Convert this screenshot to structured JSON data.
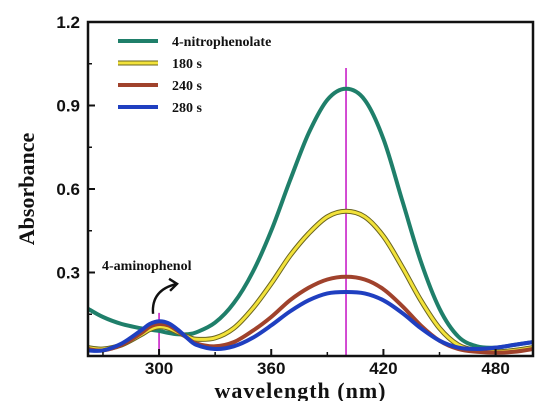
{
  "chart_data": {
    "type": "line",
    "title": "",
    "xlabel": "wavelength (nm)",
    "ylabel": "Absorbance",
    "xlim": [
      262,
      500
    ],
    "ylim": [
      0,
      1.2
    ],
    "xticks": [
      300,
      360,
      420,
      480
    ],
    "yticks": [
      0.3,
      0.6,
      0.9,
      1.2
    ],
    "xtick_labels": [
      "300",
      "360",
      "420",
      "480"
    ],
    "ytick_labels": [
      "0.3",
      "0.6",
      "0.9",
      "1.2"
    ],
    "grid": false,
    "legend_position": "top-left",
    "markers": [
      {
        "x": 300,
        "color": "#c000c0"
      },
      {
        "x": 400,
        "color": "#c000c0"
      }
    ],
    "annotation": {
      "text": "4-aminophenol",
      "x": 300,
      "y": 0.13
    },
    "series": [
      {
        "name": "4-nitrophenolate",
        "color": "#1f7f6a",
        "x": [
          262,
          270,
          280,
          290,
          295,
          300,
          305,
          310,
          315,
          320,
          330,
          340,
          350,
          360,
          370,
          380,
          390,
          400,
          410,
          420,
          430,
          440,
          450,
          460,
          470,
          480,
          490,
          500
        ],
        "y": [
          0.17,
          0.14,
          0.115,
          0.1,
          0.095,
          0.09,
          0.083,
          0.078,
          0.078,
          0.085,
          0.12,
          0.19,
          0.3,
          0.45,
          0.63,
          0.8,
          0.92,
          0.96,
          0.92,
          0.78,
          0.56,
          0.34,
          0.17,
          0.07,
          0.035,
          0.03,
          0.04,
          0.05
        ]
      },
      {
        "name": "180 s",
        "color": "#f2e23a",
        "x": [
          262,
          270,
          280,
          290,
          295,
          300,
          305,
          310,
          315,
          320,
          330,
          340,
          350,
          360,
          370,
          380,
          390,
          400,
          410,
          420,
          430,
          440,
          450,
          460,
          470,
          480,
          490,
          500
        ],
        "y": [
          0.03,
          0.025,
          0.04,
          0.075,
          0.095,
          0.105,
          0.1,
          0.085,
          0.07,
          0.06,
          0.065,
          0.1,
          0.17,
          0.26,
          0.36,
          0.44,
          0.5,
          0.52,
          0.5,
          0.43,
          0.32,
          0.2,
          0.1,
          0.04,
          0.02,
          0.015,
          0.02,
          0.03
        ]
      },
      {
        "name": "240 s",
        "color": "#a0422c",
        "x": [
          262,
          270,
          280,
          290,
          295,
          300,
          305,
          310,
          315,
          320,
          330,
          340,
          350,
          360,
          370,
          380,
          390,
          400,
          410,
          420,
          430,
          440,
          450,
          460,
          470,
          480,
          490,
          500
        ],
        "y": [
          0.025,
          0.02,
          0.04,
          0.08,
          0.105,
          0.115,
          0.11,
          0.09,
          0.065,
          0.045,
          0.035,
          0.05,
          0.09,
          0.14,
          0.2,
          0.245,
          0.275,
          0.285,
          0.275,
          0.24,
          0.18,
          0.11,
          0.055,
          0.025,
          0.015,
          0.012,
          0.015,
          0.025
        ]
      },
      {
        "name": "280 s",
        "color": "#1f3fc0",
        "x": [
          262,
          270,
          280,
          290,
          295,
          300,
          305,
          310,
          315,
          320,
          330,
          340,
          350,
          360,
          370,
          380,
          390,
          400,
          410,
          420,
          430,
          440,
          450,
          460,
          470,
          480,
          490,
          500
        ],
        "y": [
          0.02,
          0.02,
          0.045,
          0.09,
          0.115,
          0.125,
          0.118,
          0.095,
          0.065,
          0.04,
          0.025,
          0.035,
          0.065,
          0.11,
          0.16,
          0.2,
          0.225,
          0.23,
          0.225,
          0.2,
          0.155,
          0.1,
          0.055,
          0.03,
          0.025,
          0.03,
          0.04,
          0.05
        ]
      }
    ]
  }
}
